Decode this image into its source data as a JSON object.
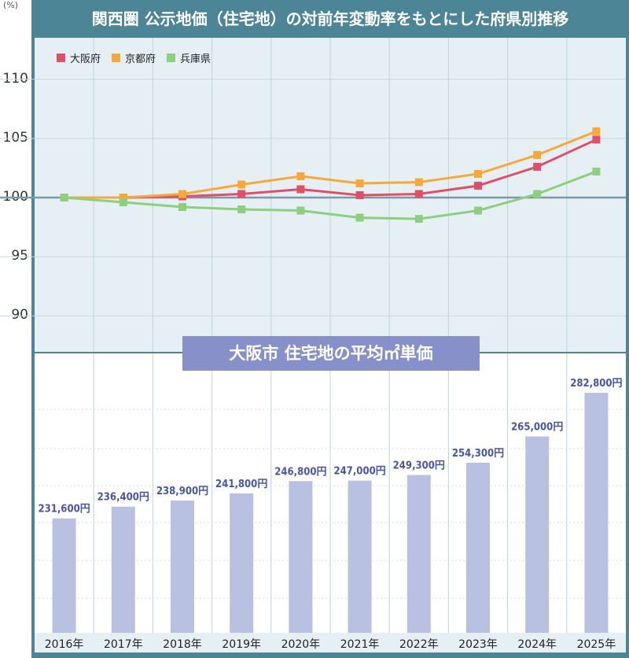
{
  "title": "関西圏 公示地価（住宅地）の対前年変動率をもとにした府県別推移",
  "unit_label": "(%)",
  "subtitle": "大阪市 住宅地の平均㎡単価",
  "colors": {
    "header": "#4c8596",
    "osaka": "#e04f6a",
    "kyoto": "#f5a93a",
    "hyogo": "#8ccf7e",
    "bar": "#b9c1e3",
    "bar_label": "#4b55a6",
    "subtitle_bg": "#8790c8"
  },
  "chart_data": [
    {
      "type": "line",
      "x": [
        "2016年",
        "2017年",
        "2018年",
        "2019年",
        "2020年",
        "2021年",
        "2022年",
        "2023年",
        "2024年",
        "2025年"
      ],
      "yticks": [
        90,
        95,
        100,
        105,
        110
      ],
      "ylim": [
        86.9,
        113.5
      ],
      "grid": true,
      "legend_position": "top-left",
      "series": [
        {
          "name": "大阪府",
          "color": "#e04f6a",
          "values": [
            100,
            100,
            100.1,
            100.3,
            100.7,
            100.2,
            100.3,
            101.0,
            102.6,
            104.9
          ]
        },
        {
          "name": "京都府",
          "color": "#f5a93a",
          "values": [
            100,
            100,
            100.3,
            101.1,
            101.8,
            101.2,
            101.3,
            102.0,
            103.6,
            105.6
          ]
        },
        {
          "name": "兵庫県",
          "color": "#8ccf7e",
          "values": [
            100,
            99.6,
            99.2,
            99.0,
            98.9,
            98.3,
            98.2,
            98.9,
            100.3,
            102.2
          ]
        }
      ]
    },
    {
      "type": "bar",
      "title": "大阪市 住宅地の平均㎡単価",
      "categories": [
        "2016年",
        "2017年",
        "2018年",
        "2019年",
        "2020年",
        "2021年",
        "2022年",
        "2023年",
        "2024年",
        "2025年"
      ],
      "values": [
        231600,
        236400,
        238900,
        241800,
        246800,
        247000,
        249300,
        254300,
        265000,
        282800
      ],
      "value_labels": [
        "231,600円",
        "236,400円",
        "238,900円",
        "241,800円",
        "246,800円",
        "247,000円",
        "249,300円",
        "254,300円",
        "265,000円",
        "282,800円"
      ]
    }
  ]
}
